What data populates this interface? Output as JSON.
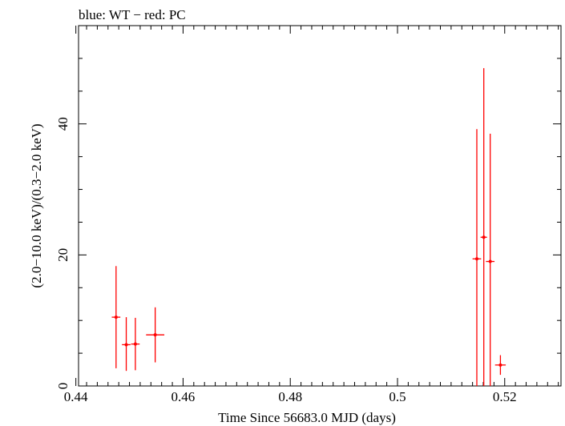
{
  "chart_data": {
    "type": "scatter",
    "title": "blue: WT − red: PC",
    "xlabel": "Time Since 56683.0 MJD (days)",
    "ylabel": "(2.0−10.0 keV)/(0.3−2.0 keV)",
    "xlim": [
      0.4405,
      0.5305
    ],
    "ylim": [
      0,
      55
    ],
    "x_ticks": [
      0.44,
      0.46,
      0.48,
      0.5,
      0.52
    ],
    "x_tick_labels": [
      "0.44",
      "0.46",
      "0.48",
      "0.5",
      "0.52"
    ],
    "y_ticks": [
      0,
      20,
      40
    ],
    "y_tick_labels": [
      "0",
      "20",
      "40"
    ],
    "grid": false,
    "colors": {
      "series": "#ff0000",
      "axes": "#000000"
    },
    "series": [
      {
        "points": [
          {
            "x": 0.4475,
            "xerr": 0.0008,
            "y": 10.5,
            "yerr_lo": 7.8,
            "yerr_hi": 7.8
          },
          {
            "x": 0.4494,
            "xerr": 0.0008,
            "y": 6.3,
            "yerr_lo": 4.0,
            "yerr_hi": 4.2
          },
          {
            "x": 0.4511,
            "xerr": 0.0008,
            "y": 6.4,
            "yerr_lo": 4.0,
            "yerr_hi": 4.0
          },
          {
            "x": 0.4548,
            "xerr": 0.0017,
            "y": 7.8,
            "yerr_lo": 4.2,
            "yerr_hi": 4.2
          },
          {
            "x": 0.5148,
            "xerr": 0.0008,
            "y": 19.4,
            "yerr_lo": 19.4,
            "yerr_hi": 19.8
          },
          {
            "x": 0.5161,
            "xerr": 0.0006,
            "y": 22.7,
            "yerr_lo": 22.7,
            "yerr_hi": 25.8
          },
          {
            "x": 0.5173,
            "xerr": 0.0008,
            "y": 19.0,
            "yerr_lo": 19.0,
            "yerr_hi": 19.5
          },
          {
            "x": 0.5192,
            "xerr": 0.001,
            "y": 3.2,
            "yerr_lo": 1.5,
            "yerr_hi": 1.5
          }
        ]
      }
    ]
  }
}
